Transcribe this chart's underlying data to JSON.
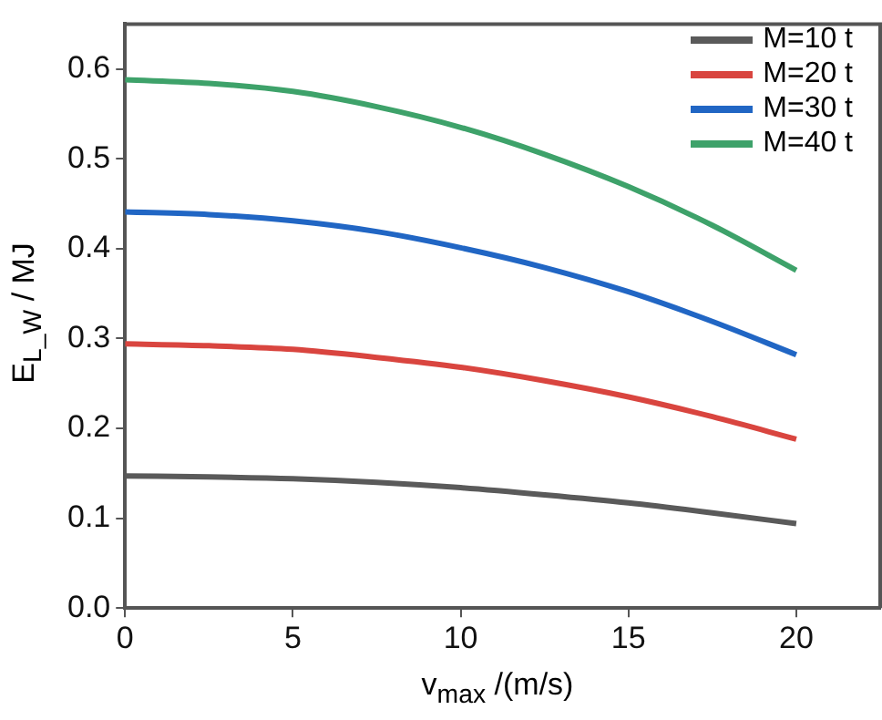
{
  "chart_data": {
    "type": "line",
    "xlabel": "v$_{max}$ /(m/s)",
    "ylabel": "E$_{L_W}$ / MJ",
    "x": [
      0,
      2.5,
      5,
      7.5,
      10,
      12.5,
      15,
      17.5,
      20
    ],
    "series": [
      {
        "name": "M=10 t",
        "color": "#5a5a5a",
        "values": [
          0.147,
          0.146,
          0.144,
          0.14,
          0.134,
          0.126,
          0.117,
          0.106,
          0.094
        ]
      },
      {
        "name": "M=20 t",
        "color": "#d9453f",
        "values": [
          0.294,
          0.292,
          0.288,
          0.279,
          0.268,
          0.253,
          0.235,
          0.213,
          0.188
        ]
      },
      {
        "name": "M=30 t",
        "color": "#2166c4",
        "values": [
          0.441,
          0.438,
          0.431,
          0.419,
          0.401,
          0.379,
          0.352,
          0.319,
          0.282
        ]
      },
      {
        "name": "M=40 t",
        "color": "#3ea26a",
        "values": [
          0.588,
          0.584,
          0.575,
          0.558,
          0.535,
          0.505,
          0.469,
          0.426,
          0.376
        ]
      }
    ],
    "xlim": [
      0,
      22.5
    ],
    "xticks": [
      0,
      5,
      10,
      15,
      20
    ],
    "ylim": [
      0,
      0.65
    ],
    "yticks": [
      {
        "value": 0,
        "label": "0.0"
      },
      {
        "value": 0.1,
        "label": "0.1"
      },
      {
        "value": 0.2,
        "label": "0.2"
      },
      {
        "value": 0.3,
        "label": "0.3"
      },
      {
        "value": 0.4,
        "label": "0.4"
      },
      {
        "value": 0.5,
        "label": "0.5"
      },
      {
        "value": 0.6,
        "label": "0.6"
      }
    ],
    "grid": false,
    "legend": "top right",
    "marker": "none",
    "line_style": "solid"
  }
}
